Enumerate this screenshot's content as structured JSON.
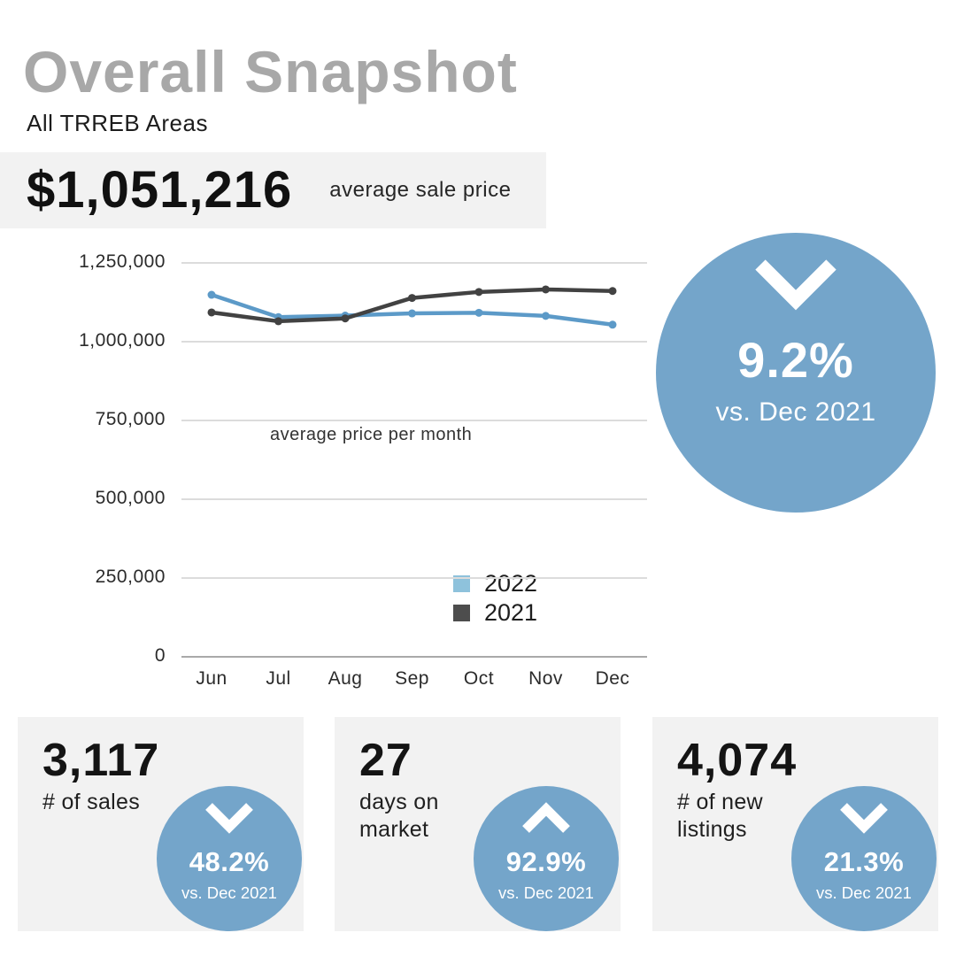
{
  "page": {
    "title": "Overall Snapshot",
    "subtitle": "All TRREB Areas"
  },
  "headline_stat": {
    "value": "$1,051,216",
    "label": "average sale price"
  },
  "big_change_badge": {
    "direction": "down",
    "value": "9.2%",
    "comparison": "vs. Dec 2021"
  },
  "chart_data": {
    "type": "line",
    "title": "average price per month",
    "categories": [
      "Jun",
      "Jul",
      "Aug",
      "Sep",
      "Oct",
      "Nov",
      "Dec"
    ],
    "series": [
      {
        "name": "2022",
        "color": "#5c9ac8",
        "values": [
          1146000,
          1075000,
          1080000,
          1087000,
          1089000,
          1079000,
          1051216
        ]
      },
      {
        "name": "2021",
        "color": "#424242",
        "values": [
          1090000,
          1062000,
          1071000,
          1136000,
          1155000,
          1163000,
          1158000
        ]
      }
    ],
    "ylabel": "",
    "xlabel": "",
    "y_ticks": [
      "1,250,000",
      "1,000,000",
      "750,000",
      "500,000",
      "250,000",
      "0"
    ],
    "y_tick_values": [
      1250000,
      1000000,
      750000,
      500000,
      250000,
      0
    ],
    "ylim": [
      0,
      1250000
    ],
    "grid": true,
    "legend_position": "inside-right"
  },
  "stat_cards": [
    {
      "value": "3,117",
      "label_lines": [
        "# of sales"
      ],
      "badge": {
        "direction": "down",
        "value": "48.2%",
        "comparison": "vs. Dec 2021"
      }
    },
    {
      "value": "27",
      "label_lines": [
        "days on",
        "market"
      ],
      "badge": {
        "direction": "up",
        "value": "92.9%",
        "comparison": "vs. Dec 2021"
      }
    },
    {
      "value": "4,074",
      "label_lines": [
        "# of new",
        "listings"
      ],
      "badge": {
        "direction": "down",
        "value": "21.3%",
        "comparison": "vs. Dec 2021"
      }
    }
  ],
  "colors": {
    "accent_blue": "#74a5ca",
    "panel_gray": "#f2f2f2",
    "title_gray": "#a8a8a8",
    "line_2022": "#5c9ac8",
    "line_2021": "#424242",
    "legend_2022_swatch": "#8ec2dc",
    "legend_2021_swatch": "#4d4d4d",
    "gridline": "#dcdcdc",
    "axis_line": "#a9a9a9"
  }
}
